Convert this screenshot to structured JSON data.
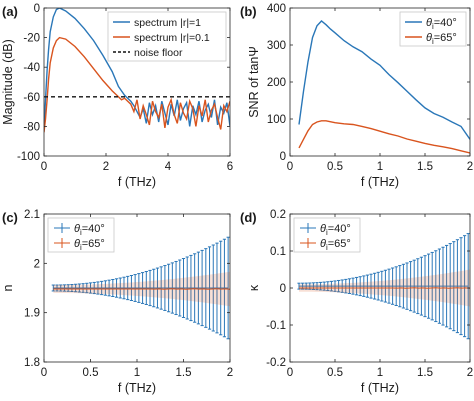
{
  "figure": {
    "panels": [
      {
        "panel_label": "(a)",
        "chart_data": {
          "type": "line",
          "xlabel": "f (THz)",
          "ylabel": "Magnitude (dB)",
          "xlim": [
            0,
            6
          ],
          "ylim": [
            -100,
            0
          ],
          "xticks": [
            0,
            2,
            4,
            6
          ],
          "yticks": [
            0,
            -20,
            -40,
            -60,
            -80,
            -100
          ],
          "legend_position": "top-right",
          "series": [
            {
              "name": "spectrum |r|=1",
              "color": "#2a77b8",
              "x": [
                0.0,
                0.05,
                0.1,
                0.15,
                0.2,
                0.3,
                0.4,
                0.5,
                0.7,
                1.0,
                1.3,
                1.6,
                1.9,
                2.2,
                2.4,
                2.5,
                2.6,
                2.7,
                2.8,
                2.9,
                3.0,
                3.1,
                3.2,
                3.3,
                3.4,
                3.5,
                3.6,
                3.7,
                3.8,
                3.9,
                4.0,
                4.1,
                4.2,
                4.3,
                4.4,
                4.5,
                4.6,
                4.7,
                4.8,
                4.9,
                5.0,
                5.1,
                5.2,
                5.3,
                5.4,
                5.5,
                5.6,
                5.7,
                5.8,
                5.9,
                6.0
              ],
              "y": [
                -82,
                -62,
                -42,
                -28,
                -16,
                -6,
                -1,
                0,
                -2,
                -7,
                -14,
                -22,
                -32,
                -43,
                -53,
                -56,
                -59,
                -61,
                -63,
                -66,
                -70,
                -74,
                -68,
                -78,
                -64,
                -72,
                -66,
                -77,
                -63,
                -71,
                -79,
                -65,
                -73,
                -62,
                -76,
                -68,
                -64,
                -80,
                -66,
                -72,
                -63,
                -77,
                -69,
                -65,
                -74,
                -62,
                -79,
                -67,
                -71,
                -64,
                -80
              ]
            },
            {
              "name": "spectrum |r|=0.1",
              "color": "#d9541e",
              "x": [
                0.0,
                0.05,
                0.1,
                0.15,
                0.2,
                0.3,
                0.4,
                0.5,
                0.7,
                1.0,
                1.3,
                1.6,
                1.9,
                2.2,
                2.4,
                2.5,
                2.6,
                2.7,
                2.8,
                2.9,
                3.0,
                3.1,
                3.2,
                3.3,
                3.4,
                3.5,
                3.6,
                3.7,
                3.8,
                3.9,
                4.0,
                4.1,
                4.2,
                4.3,
                4.4,
                4.5,
                4.6,
                4.7,
                4.8,
                4.9,
                5.0,
                5.1,
                5.2,
                5.3,
                5.4,
                5.5,
                5.6,
                5.7,
                5.8,
                5.9,
                6.0
              ],
              "y": [
                -84,
                -75,
                -62,
                -48,
                -37,
                -27,
                -22,
                -20,
                -21,
                -26,
                -33,
                -41,
                -49,
                -56,
                -60,
                -62,
                -61,
                -63,
                -65,
                -70,
                -62,
                -75,
                -66,
                -72,
                -79,
                -63,
                -70,
                -74,
                -65,
                -81,
                -67,
                -62,
                -72,
                -78,
                -64,
                -71,
                -75,
                -63,
                -68,
                -80,
                -66,
                -73,
                -62,
                -77,
                -69,
                -65,
                -74,
                -82,
                -66,
                -70,
                -63
              ]
            },
            {
              "name": "noise floor",
              "color": "#111111",
              "dashed": true,
              "x": [
                0,
                6
              ],
              "y": [
                -60,
                -60
              ]
            }
          ]
        }
      },
      {
        "panel_label": "(b)",
        "chart_data": {
          "type": "line",
          "xlabel": "f (THz)",
          "ylabel": "SNR of tanΨ",
          "xlim": [
            0,
            2
          ],
          "ylim": [
            0,
            400
          ],
          "xticks": [
            0,
            0.5,
            1,
            1.5,
            2
          ],
          "yticks": [
            0,
            100,
            200,
            300,
            400
          ],
          "legend_position": "top-right",
          "series": [
            {
              "name_main": "θ",
              "name_sub": "i",
              "name_rest": "=40°",
              "color": "#2a77b8",
              "x": [
                0.1,
                0.15,
                0.2,
                0.25,
                0.3,
                0.35,
                0.4,
                0.45,
                0.5,
                0.6,
                0.7,
                0.8,
                0.9,
                1.0,
                1.1,
                1.2,
                1.3,
                1.4,
                1.5,
                1.6,
                1.7,
                1.8,
                1.9,
                2.0
              ],
              "y": [
                85,
                175,
                255,
                320,
                352,
                365,
                355,
                343,
                333,
                312,
                295,
                282,
                262,
                245,
                220,
                198,
                175,
                152,
                130,
                115,
                105,
                92,
                80,
                45
              ]
            },
            {
              "name_main": "θ",
              "name_sub": "i",
              "name_rest": "=65°",
              "color": "#d9541e",
              "x": [
                0.1,
                0.15,
                0.2,
                0.25,
                0.3,
                0.35,
                0.4,
                0.5,
                0.6,
                0.7,
                0.8,
                0.9,
                1.0,
                1.1,
                1.2,
                1.3,
                1.4,
                1.5,
                1.6,
                1.7,
                1.8,
                1.9,
                2.0
              ],
              "y": [
                22,
                45,
                68,
                85,
                92,
                95,
                95,
                90,
                87,
                85,
                80,
                74,
                67,
                60,
                54,
                46,
                40,
                34,
                29,
                25,
                20,
                14,
                8
              ]
            }
          ]
        }
      },
      {
        "panel_label": "(c)",
        "chart_data": {
          "type": "line",
          "xlabel": "f (THz)",
          "ylabel": "n",
          "xlim": [
            0,
            2
          ],
          "ylim": [
            1.8,
            2.1
          ],
          "xticks": [
            0,
            0.5,
            1,
            1.5,
            2
          ],
          "yticks": [
            1.8,
            1.9,
            2.0,
            2.1
          ],
          "ytick_labels": [
            "1.8",
            "1.9",
            "2",
            "2.1"
          ],
          "legend_position": "top-left",
          "series": [
            {
              "name_main": "θ",
              "name_sub": "i",
              "name_rest": "=40°",
              "color": "#2a77b8",
              "style": "errorbar",
              "center": 1.95,
              "x_start": 0.1,
              "x_end": 2.0,
              "x_step": 0.04,
              "error_min": 0.006,
              "error_max": 0.105
            },
            {
              "name_main": "θ",
              "name_sub": "i",
              "name_rest": "=65°",
              "color": "#d9541e",
              "style": "band",
              "center": 1.948,
              "x_start": 0.1,
              "x_end": 2.0,
              "error_min": 0.008,
              "error_max": 0.035
            }
          ]
        }
      },
      {
        "panel_label": "(d)",
        "chart_data": {
          "type": "line",
          "xlabel": "f (THz)",
          "ylabel": "κ",
          "xlim": [
            0,
            2
          ],
          "ylim": [
            -0.2,
            0.2
          ],
          "xticks": [
            0,
            0.5,
            1,
            1.5,
            2
          ],
          "yticks": [
            -0.2,
            -0.1,
            0,
            0.1,
            0.2
          ],
          "legend_position": "top-left",
          "series": [
            {
              "name_main": "θ",
              "name_sub": "i",
              "name_rest": "=40°",
              "color": "#2a77b8",
              "style": "errorbar",
              "center": 0.005,
              "x_start": 0.1,
              "x_end": 2.0,
              "x_step": 0.04,
              "error_min": 0.008,
              "error_max": 0.145
            },
            {
              "name_main": "θ",
              "name_sub": "i",
              "name_rest": "=65°",
              "color": "#d9541e",
              "style": "band",
              "center": 0.0,
              "x_start": 0.1,
              "x_end": 2.0,
              "error_min": 0.01,
              "error_max": 0.05
            }
          ]
        }
      }
    ]
  }
}
